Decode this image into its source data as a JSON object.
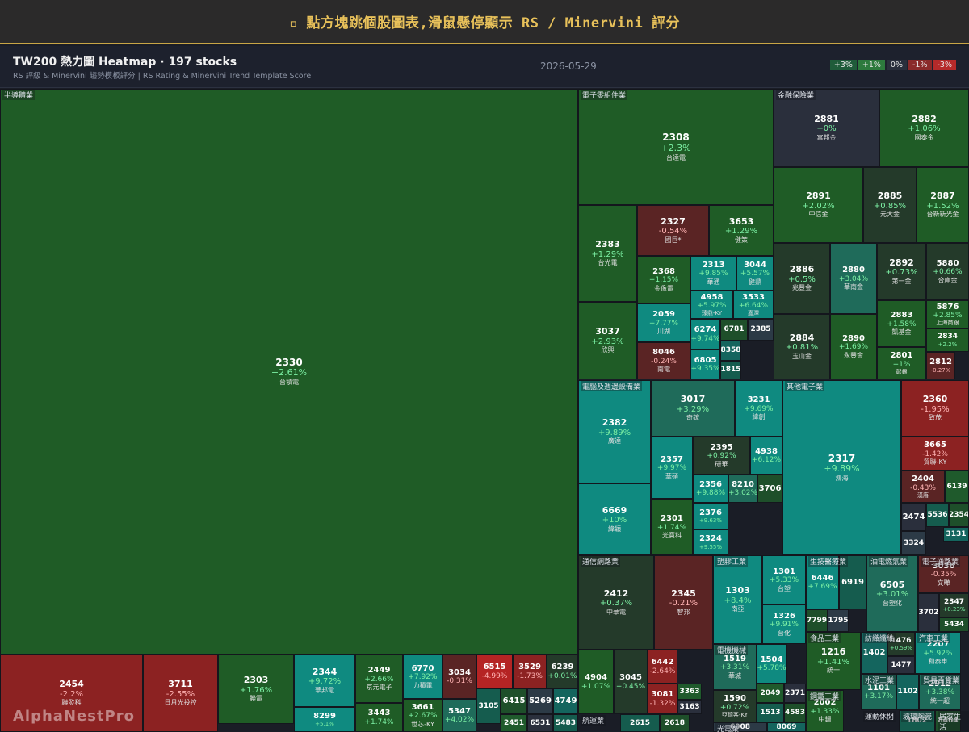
{
  "banner": "▫ 點方塊跳個股圖表,滑鼠懸停顯示 RS / Minervini 評分",
  "header": {
    "title": "TW200 熱力圖 Heatmap · 197 stocks",
    "subtitle": "RS 評級 & Minervini 趨勢模板評分 | RS Rating & Minervini Trend Template Score",
    "date": "2026-05-29",
    "legend": [
      {
        "label": "+3%",
        "color": "#1f5c3a"
      },
      {
        "label": "+1%",
        "color": "#2d7a3d"
      },
      {
        "label": "0%",
        "color": "#2a2f3c"
      },
      {
        "label": "-1%",
        "color": "#8a2a2a"
      },
      {
        "label": "-3%",
        "color": "#b52a2a"
      }
    ]
  },
  "watermark": "AlphaNestPro",
  "chart_data": {
    "type": "heatmap",
    "sectors": [
      "半導體業",
      "電子零組件業",
      "金融保險業",
      "電腦及週邊設備業",
      "其他電子業",
      "通信網路業",
      "塑膠工業",
      "生技醫療業",
      "油電燃氣業",
      "電子通路業",
      "食品工業",
      "紡織纖維",
      "汽車工業",
      "電機機械",
      "水泥工業",
      "貿易百貨業",
      "鋼鐵工業",
      "航運業",
      "運動休閒",
      "玻璃陶瓷",
      "居家生活",
      "光電業"
    ],
    "stocks": [
      {
        "code": "2330",
        "chg": "+2.61%",
        "name": "台積電"
      },
      {
        "code": "2454",
        "chg": "-2.2%",
        "name": "聯發科"
      },
      {
        "code": "3711",
        "chg": "-2.55%",
        "name": "日月光投控"
      },
      {
        "code": "2303",
        "chg": "+1.76%",
        "name": "聯電"
      },
      {
        "code": "2344",
        "chg": "+9.72%",
        "name": "華邦電"
      },
      {
        "code": "8299",
        "chg": "+5.1%",
        "name": ""
      },
      {
        "code": "2449",
        "chg": "+2.66%",
        "name": "京元電子"
      },
      {
        "code": "3443",
        "chg": "+1.74%",
        "name": ""
      },
      {
        "code": "6770",
        "chg": "+7.92%",
        "name": "力積電"
      },
      {
        "code": "3034",
        "chg": "-0.31%",
        "name": ""
      },
      {
        "code": "3661",
        "chg": "+2.67%",
        "name": "世芯-KY"
      },
      {
        "code": "5347",
        "chg": "+4.02%",
        "name": ""
      },
      {
        "code": "6515",
        "chg": "-4.99%",
        "name": ""
      },
      {
        "code": "3529",
        "chg": "-1.73%",
        "name": ""
      },
      {
        "code": "6239",
        "chg": "+0.01%",
        "name": ""
      },
      {
        "code": "3105",
        "chg": "",
        "name": ""
      },
      {
        "code": "6415",
        "chg": "",
        "name": ""
      },
      {
        "code": "5269",
        "chg": "",
        "name": ""
      },
      {
        "code": "4749",
        "chg": "",
        "name": ""
      },
      {
        "code": "2451",
        "chg": "",
        "name": ""
      },
      {
        "code": "6531",
        "chg": "",
        "name": ""
      },
      {
        "code": "5483",
        "chg": "",
        "name": ""
      },
      {
        "code": "2308",
        "chg": "+2.3%",
        "name": "台達電"
      },
      {
        "code": "2383",
        "chg": "+1.29%",
        "name": "台光電"
      },
      {
        "code": "2327",
        "chg": "-0.54%",
        "name": "國巨*"
      },
      {
        "code": "3653",
        "chg": "+1.29%",
        "name": "健策"
      },
      {
        "code": "2368",
        "chg": "+1.15%",
        "name": "金像電"
      },
      {
        "code": "2313",
        "chg": "+9.85%",
        "name": "華通"
      },
      {
        "code": "3044",
        "chg": "+5.57%",
        "name": "健鼎"
      },
      {
        "code": "4958",
        "chg": "+5.97%",
        "name": "臻鼎-KY"
      },
      {
        "code": "3533",
        "chg": "+6.64%",
        "name": "嘉澤"
      },
      {
        "code": "3037",
        "chg": "+2.93%",
        "name": "欣興"
      },
      {
        "code": "2059",
        "chg": "+7.77%",
        "name": "川湖"
      },
      {
        "code": "6274",
        "chg": "+9.74%",
        "name": ""
      },
      {
        "code": "6781",
        "chg": "",
        "name": ""
      },
      {
        "code": "2385",
        "chg": "",
        "name": ""
      },
      {
        "code": "8358",
        "chg": "",
        "name": ""
      },
      {
        "code": "8046",
        "chg": "-0.24%",
        "name": "南電"
      },
      {
        "code": "6805",
        "chg": "+9.35%",
        "name": ""
      },
      {
        "code": "1815",
        "chg": "",
        "name": ""
      },
      {
        "code": "2881",
        "chg": "+0%",
        "name": "富邦金"
      },
      {
        "code": "2882",
        "chg": "+1.06%",
        "name": "國泰金"
      },
      {
        "code": "2891",
        "chg": "+2.02%",
        "name": "中信金"
      },
      {
        "code": "2885",
        "chg": "+0.85%",
        "name": "元大金"
      },
      {
        "code": "2887",
        "chg": "+1.52%",
        "name": "台新新光金"
      },
      {
        "code": "2886",
        "chg": "+0.5%",
        "name": "兆豐金"
      },
      {
        "code": "2880",
        "chg": "+3.04%",
        "name": "華南金"
      },
      {
        "code": "2892",
        "chg": "+0.73%",
        "name": "第一金"
      },
      {
        "code": "5880",
        "chg": "+0.66%",
        "name": "合庫金"
      },
      {
        "code": "2883",
        "chg": "+1.58%",
        "name": "凱基金"
      },
      {
        "code": "5876",
        "chg": "+2.85%",
        "name": "上海商銀"
      },
      {
        "code": "2884",
        "chg": "+0.81%",
        "name": "玉山金"
      },
      {
        "code": "2890",
        "chg": "+1.69%",
        "name": "永豐金"
      },
      {
        "code": "2834",
        "chg": "+2.2%",
        "name": ""
      },
      {
        "code": "2801",
        "chg": "+1%",
        "name": "彰銀"
      },
      {
        "code": "2812",
        "chg": "-0.27%",
        "name": ""
      },
      {
        "code": "2382",
        "chg": "+9.89%",
        "name": "廣達"
      },
      {
        "code": "3017",
        "chg": "+3.29%",
        "name": "奇鋐"
      },
      {
        "code": "3231",
        "chg": "+9.69%",
        "name": "緯創"
      },
      {
        "code": "2357",
        "chg": "+9.97%",
        "name": "華碩"
      },
      {
        "code": "2395",
        "chg": "+0.92%",
        "name": "研華"
      },
      {
        "code": "4938",
        "chg": "+6.12%",
        "name": ""
      },
      {
        "code": "2356",
        "chg": "+9.88%",
        "name": ""
      },
      {
        "code": "8210",
        "chg": "+3.02%",
        "name": ""
      },
      {
        "code": "3706",
        "chg": "",
        "name": ""
      },
      {
        "code": "6669",
        "chg": "+10%",
        "name": "緯穎"
      },
      {
        "code": "2301",
        "chg": "+1.74%",
        "name": "光寶科"
      },
      {
        "code": "2376",
        "chg": "+9.63%",
        "name": ""
      },
      {
        "code": "2324",
        "chg": "+9.55%",
        "name": ""
      },
      {
        "code": "2317",
        "chg": "+9.89%",
        "name": "鴻海"
      },
      {
        "code": "2360",
        "chg": "-1.95%",
        "name": "致茂"
      },
      {
        "code": "3665",
        "chg": "-1.42%",
        "name": "貿聯-KY"
      },
      {
        "code": "2404",
        "chg": "-0.43%",
        "name": "漢唐"
      },
      {
        "code": "6139",
        "chg": "",
        "name": ""
      },
      {
        "code": "2474",
        "chg": "",
        "name": ""
      },
      {
        "code": "5536",
        "chg": "",
        "name": ""
      },
      {
        "code": "2354",
        "chg": "",
        "name": ""
      },
      {
        "code": "3324",
        "chg": "",
        "name": ""
      },
      {
        "code": "3131",
        "chg": "",
        "name": ""
      },
      {
        "code": "2412",
        "chg": "+0.37%",
        "name": "中華電"
      },
      {
        "code": "2345",
        "chg": "-0.21%",
        "name": "智邦"
      },
      {
        "code": "4904",
        "chg": "+1.07%",
        "name": ""
      },
      {
        "code": "3045",
        "chg": "+0.45%",
        "name": ""
      },
      {
        "code": "6442",
        "chg": "-2.64%",
        "name": ""
      },
      {
        "code": "3081",
        "chg": "-1.32%",
        "name": ""
      },
      {
        "code": "3363",
        "chg": "",
        "name": ""
      },
      {
        "code": "3163",
        "chg": "",
        "name": ""
      },
      {
        "code": "2615",
        "chg": "",
        "name": ""
      },
      {
        "code": "2618",
        "chg": "",
        "name": ""
      },
      {
        "code": "1303",
        "chg": "+8.4%",
        "name": "南亞"
      },
      {
        "code": "1301",
        "chg": "+5.33%",
        "name": "台塑"
      },
      {
        "code": "1326",
        "chg": "+9.91%",
        "name": "台化"
      },
      {
        "code": "6446",
        "chg": "+7.69%",
        "name": ""
      },
      {
        "code": "6919",
        "chg": "",
        "name": ""
      },
      {
        "code": "7799",
        "chg": "",
        "name": ""
      },
      {
        "code": "1795",
        "chg": "",
        "name": ""
      },
      {
        "code": "6505",
        "chg": "+3.01%",
        "name": "台塑化"
      },
      {
        "code": "3036",
        "chg": "-0.35%",
        "name": "文曄"
      },
      {
        "code": "3702",
        "chg": "",
        "name": ""
      },
      {
        "code": "2347",
        "chg": "+0.23%",
        "name": ""
      },
      {
        "code": "5434",
        "chg": "",
        "name": ""
      },
      {
        "code": "1216",
        "chg": "+1.41%",
        "name": "統一"
      },
      {
        "code": "1402",
        "chg": "",
        "name": ""
      },
      {
        "code": "1476",
        "chg": "+0.59%",
        "name": ""
      },
      {
        "code": "1477",
        "chg": "",
        "name": ""
      },
      {
        "code": "2207",
        "chg": "+5.92%",
        "name": "和泰車"
      },
      {
        "code": "1519",
        "chg": "+3.31%",
        "name": "華城"
      },
      {
        "code": "1504",
        "chg": "+5.78%",
        "name": ""
      },
      {
        "code": "1590",
        "chg": "+0.72%",
        "name": "亞德客-KY"
      },
      {
        "code": "2049",
        "chg": "",
        "name": ""
      },
      {
        "code": "2371",
        "chg": "",
        "name": ""
      },
      {
        "code": "1513",
        "chg": "",
        "name": ""
      },
      {
        "code": "4583",
        "chg": "",
        "name": ""
      },
      {
        "code": "1101",
        "chg": "+3.17%",
        "name": ""
      },
      {
        "code": "1102",
        "chg": "",
        "name": ""
      },
      {
        "code": "2912",
        "chg": "+3.38%",
        "name": "統一超"
      },
      {
        "code": "2002",
        "chg": "+1.33%",
        "name": "中鋼"
      },
      {
        "code": "1802",
        "chg": "",
        "name": ""
      },
      {
        "code": "8464",
        "chg": "",
        "name": ""
      },
      {
        "code": "6008",
        "chg": "",
        "name": ""
      },
      {
        "code": "8069",
        "chg": "",
        "name": ""
      }
    ]
  }
}
